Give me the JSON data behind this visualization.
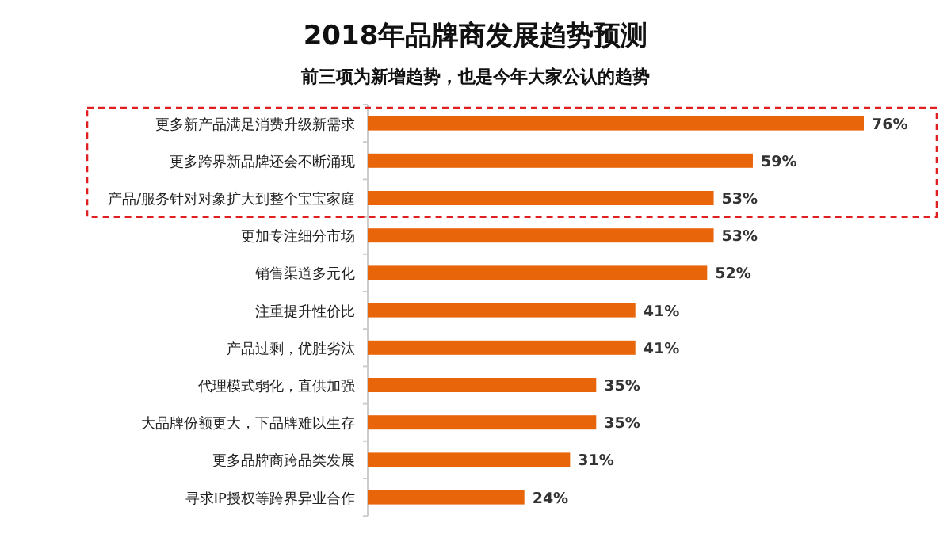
{
  "chart_data": {
    "type": "bar",
    "orientation": "horizontal",
    "title": "2018年品牌商发展趋势预测",
    "subtitle": "前三项为新增趋势，也是今年大家公认的趋势",
    "categories": [
      "更多新产品满足消费升级新需求",
      "更多跨界新品牌还会不断涌现",
      "产品/服务针对对象扩大到整个宝宝家庭",
      "更加专注细分市场",
      "销售渠道多元化",
      "注重提升性价比",
      "产品过剩，优胜劣汰",
      "代理模式弱化，直供加强",
      "大品牌份额更大，下品牌难以生存",
      "更多品牌商跨品类发展",
      "寻求IP授权等跨界异业合作"
    ],
    "values": [
      76,
      59,
      53,
      53,
      52,
      41,
      41,
      35,
      35,
      31,
      24
    ],
    "value_labels": [
      "76%",
      "59%",
      "53%",
      "53%",
      "52%",
      "41%",
      "41%",
      "35%",
      "35%",
      "31%",
      "24%"
    ],
    "color": "#e8650a",
    "tick_labels": "y"
  }
}
